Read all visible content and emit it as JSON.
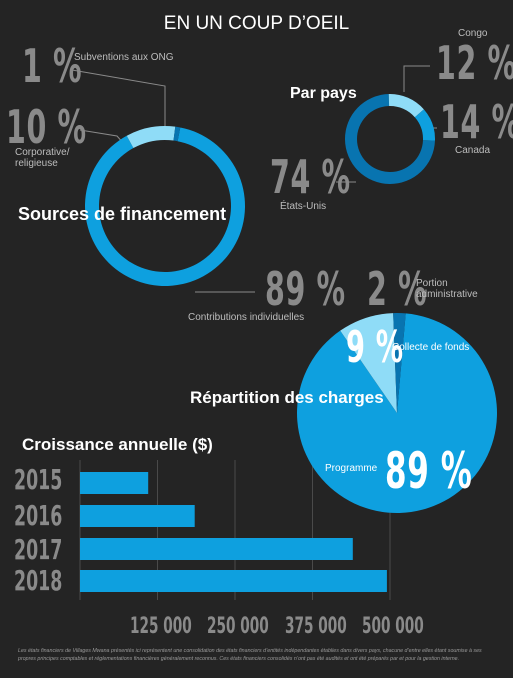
{
  "page": {
    "title": "EN UN COUP D’OEIL",
    "footnote": "Les états financiers de Villages Mwana présentés ici représentent une consolidation des états financiers d’entités indépendantes établies dans divers pays, chacune d’entre elles étant soumise à ses propres principes comptables et réglementations financières généralement reconnus. Ces états financiers consolidés n’ont pas été audités et ont été préparés par et pour la gestion interne."
  },
  "colors": {
    "primary": "#0ea0df",
    "dark": "#0874b0",
    "light": "#8fdcf7",
    "background": "#242424",
    "gray": "#8a8a8a"
  },
  "chart_data": [
    {
      "type": "pie",
      "title": "Sources de financement",
      "slices": [
        {
          "label": "Contributions individuelles",
          "value": 89,
          "display": "89 %"
        },
        {
          "label": "Corporative/ religieuse",
          "value": 10,
          "display": "10 %"
        },
        {
          "label": "Subventions aux ONG",
          "value": 1,
          "display": "1 %"
        }
      ]
    },
    {
      "type": "pie",
      "title": "Par pays",
      "slices": [
        {
          "label": "États-Unis",
          "value": 74,
          "display": "74 %"
        },
        {
          "label": "Canada",
          "value": 14,
          "display": "14 %"
        },
        {
          "label": "Congo",
          "value": 12,
          "display": "12 %"
        }
      ]
    },
    {
      "type": "pie",
      "title": "Répartition des charges",
      "slices": [
        {
          "label": "Programme",
          "value": 89,
          "display": "89 %"
        },
        {
          "label": "Collecte de fonds",
          "value": 9,
          "display": "9 %"
        },
        {
          "label": "Portion administrative",
          "value": 2,
          "display": "2 %"
        }
      ]
    },
    {
      "type": "bar",
      "orientation": "horizontal",
      "title": "Croissance annuelle ($)",
      "categories": [
        "2015",
        "2016",
        "2017",
        "2018"
      ],
      "values": [
        110000,
        185000,
        440000,
        495000
      ],
      "xticks": [
        125000,
        250000,
        375000,
        500000
      ],
      "xtick_labels": [
        "125 000",
        "250 000",
        "375 000",
        "500 000"
      ],
      "xlim": [
        0,
        520000
      ]
    }
  ]
}
